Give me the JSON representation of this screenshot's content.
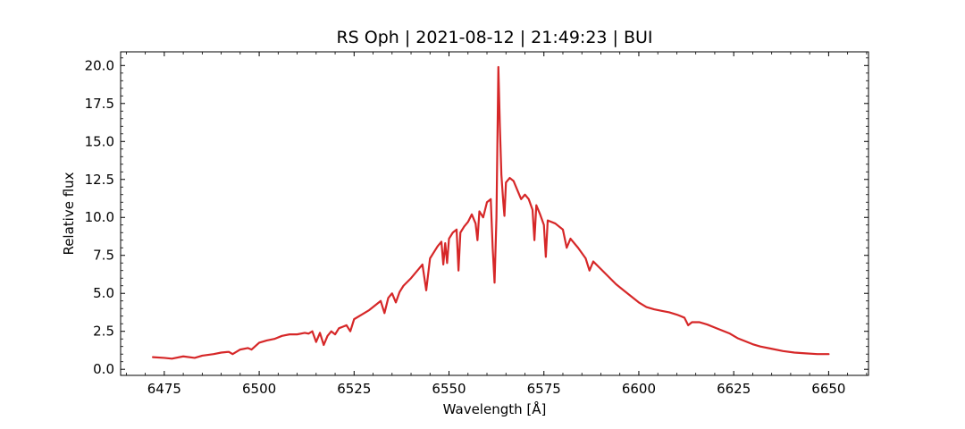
{
  "chart_data": {
    "type": "line",
    "title": "RS Oph | 2021-08-12 | 21:49:23 | BUI",
    "xlabel": "Wavelength [Å]",
    "ylabel": "Relative flux",
    "xlim": [
      6463.5,
      6660.5
    ],
    "ylim": [
      -0.4,
      20.9
    ],
    "xticks": [
      6475,
      6500,
      6525,
      6550,
      6575,
      6600,
      6625,
      6650
    ],
    "xtick_labels": [
      "6475",
      "6500",
      "6525",
      "6550",
      "6575",
      "6600",
      "6625",
      "6650"
    ],
    "yticks": [
      0,
      2.5,
      5,
      7.5,
      10,
      12.5,
      15,
      17.5,
      20
    ],
    "ytick_labels": [
      "0.0",
      "2.5",
      "5.0",
      "7.5",
      "10.0",
      "12.5",
      "15.0",
      "17.5",
      "20.0"
    ],
    "grid": false,
    "series": [
      {
        "color": "#d62728",
        "points": [
          [
            6472,
            0.8
          ],
          [
            6475,
            0.75
          ],
          [
            6477,
            0.7
          ],
          [
            6480,
            0.85
          ],
          [
            6483,
            0.75
          ],
          [
            6485,
            0.9
          ],
          [
            6488,
            1.0
          ],
          [
            6490,
            1.1
          ],
          [
            6492,
            1.15
          ],
          [
            6493,
            1.0
          ],
          [
            6495,
            1.3
          ],
          [
            6497,
            1.4
          ],
          [
            6498,
            1.3
          ],
          [
            6500,
            1.75
          ],
          [
            6502,
            1.9
          ],
          [
            6504,
            2.0
          ],
          [
            6506,
            2.2
          ],
          [
            6508,
            2.3
          ],
          [
            6510,
            2.3
          ],
          [
            6512,
            2.4
          ],
          [
            6513,
            2.35
          ],
          [
            6514,
            2.5
          ],
          [
            6515,
            1.8
          ],
          [
            6516,
            2.4
          ],
          [
            6517,
            1.6
          ],
          [
            6518,
            2.2
          ],
          [
            6519,
            2.5
          ],
          [
            6520,
            2.3
          ],
          [
            6521,
            2.7
          ],
          [
            6522,
            2.8
          ],
          [
            6523,
            2.9
          ],
          [
            6524,
            2.5
          ],
          [
            6525,
            3.3
          ],
          [
            6527,
            3.6
          ],
          [
            6529,
            3.9
          ],
          [
            6531,
            4.3
          ],
          [
            6532,
            4.5
          ],
          [
            6533,
            3.7
          ],
          [
            6534,
            4.7
          ],
          [
            6535,
            5.0
          ],
          [
            6536,
            4.4
          ],
          [
            6537,
            5.1
          ],
          [
            6538,
            5.5
          ],
          [
            6540,
            6.0
          ],
          [
            6542,
            6.6
          ],
          [
            6543,
            6.9
          ],
          [
            6544,
            5.2
          ],
          [
            6545,
            7.3
          ],
          [
            6546,
            7.7
          ],
          [
            6547,
            8.1
          ],
          [
            6548,
            8.4
          ],
          [
            6548.5,
            6.9
          ],
          [
            6549,
            8.3
          ],
          [
            6549.5,
            7.0
          ],
          [
            6550,
            8.6
          ],
          [
            6551,
            9.0
          ],
          [
            6552,
            9.2
          ],
          [
            6552.5,
            6.5
          ],
          [
            6553,
            9.0
          ],
          [
            6554,
            9.4
          ],
          [
            6555,
            9.7
          ],
          [
            6556,
            10.2
          ],
          [
            6557,
            9.6
          ],
          [
            6557.5,
            8.5
          ],
          [
            6558,
            10.4
          ],
          [
            6559,
            10.0
          ],
          [
            6560,
            11.0
          ],
          [
            6561,
            11.2
          ],
          [
            6561.5,
            8.0
          ],
          [
            6562,
            5.7
          ],
          [
            6562.5,
            10.0
          ],
          [
            6563,
            19.9
          ],
          [
            6563.4,
            16.0
          ],
          [
            6563.8,
            12.8
          ],
          [
            6564.3,
            11.0
          ],
          [
            6564.6,
            10.1
          ],
          [
            6565,
            12.3
          ],
          [
            6566,
            12.6
          ],
          [
            6567,
            12.4
          ],
          [
            6568,
            11.8
          ],
          [
            6569,
            11.2
          ],
          [
            6570,
            11.5
          ],
          [
            6571,
            11.2
          ],
          [
            6572,
            10.5
          ],
          [
            6572.5,
            8.5
          ],
          [
            6573,
            10.8
          ],
          [
            6574,
            10.2
          ],
          [
            6575,
            9.5
          ],
          [
            6575.5,
            7.4
          ],
          [
            6576,
            9.8
          ],
          [
            6578,
            9.6
          ],
          [
            6580,
            9.2
          ],
          [
            6581,
            8.0
          ],
          [
            6582,
            8.6
          ],
          [
            6584,
            8.0
          ],
          [
            6586,
            7.3
          ],
          [
            6587,
            6.5
          ],
          [
            6588,
            7.1
          ],
          [
            6590,
            6.6
          ],
          [
            6592,
            6.1
          ],
          [
            6594,
            5.6
          ],
          [
            6596,
            5.2
          ],
          [
            6598,
            4.8
          ],
          [
            6600,
            4.4
          ],
          [
            6602,
            4.1
          ],
          [
            6604,
            3.95
          ],
          [
            6606,
            3.85
          ],
          [
            6608,
            3.75
          ],
          [
            6610,
            3.6
          ],
          [
            6612,
            3.4
          ],
          [
            6613,
            2.9
          ],
          [
            6614,
            3.1
          ],
          [
            6616,
            3.1
          ],
          [
            6618,
            2.95
          ],
          [
            6620,
            2.75
          ],
          [
            6622,
            2.55
          ],
          [
            6624,
            2.35
          ],
          [
            6626,
            2.05
          ],
          [
            6628,
            1.85
          ],
          [
            6630,
            1.65
          ],
          [
            6632,
            1.5
          ],
          [
            6635,
            1.35
          ],
          [
            6638,
            1.2
          ],
          [
            6641,
            1.1
          ],
          [
            6644,
            1.05
          ],
          [
            6647,
            1.0
          ],
          [
            6650,
            1.0
          ]
        ]
      }
    ]
  }
}
